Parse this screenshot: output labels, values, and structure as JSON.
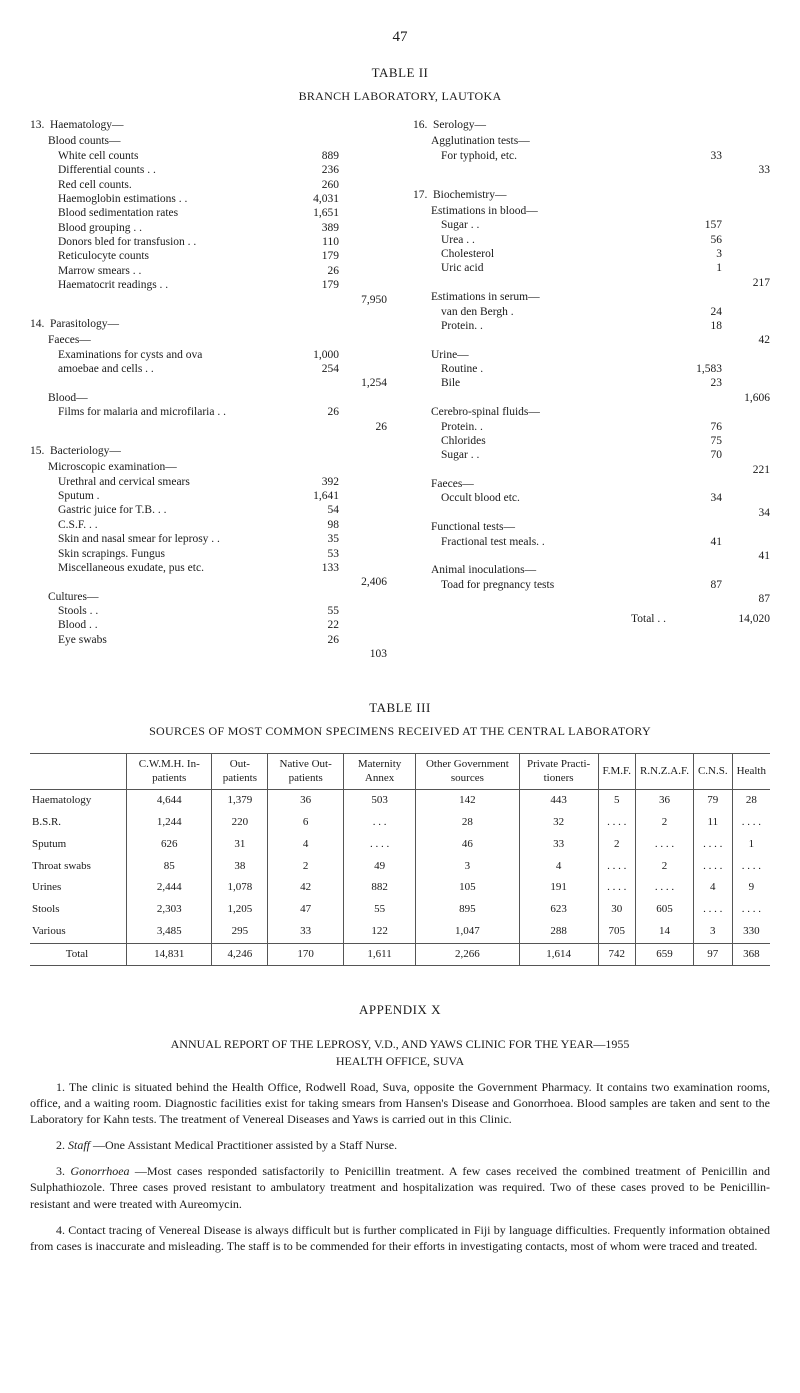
{
  "page_number": "47",
  "table2": {
    "title": "TABLE II",
    "subtitle": "BRANCH LABORATORY, LAUTOKA",
    "left": {
      "g13": {
        "num": "13.",
        "title": "Haematology—",
        "sub1": "Blood counts—",
        "items": [
          {
            "l": "White cell counts",
            "v": "889"
          },
          {
            "l": "Differential counts  . .",
            "v": "236"
          },
          {
            "l": "Red cell counts.",
            "v": "260"
          },
          {
            "l": "Haemoglobin estimations  . .",
            "v": "4,031"
          },
          {
            "l": "Blood sedimentation rates",
            "v": "1,651"
          },
          {
            "l": "Blood grouping  . .",
            "v": "389"
          },
          {
            "l": "Donors bled for transfusion  . .",
            "v": "110"
          },
          {
            "l": "Reticulocyte counts",
            "v": "179"
          },
          {
            "l": "Marrow smears  . .",
            "v": "26"
          },
          {
            "l": "Haematocrit readings  . .",
            "v": "179"
          }
        ],
        "subtotal": "7,950"
      },
      "g14": {
        "num": "14.",
        "title": "Parasitology—",
        "sub1": "Faeces—",
        "items": [
          {
            "l": "Examinations for cysts and ova",
            "v": "1,000"
          },
          {
            "l": "amoebae and cells  . .",
            "v": "254"
          }
        ],
        "sub1_total": "1,254",
        "sub2": "Blood—",
        "items2": [
          {
            "l": "Films for malaria and microfilaria  . .",
            "v": "26"
          }
        ],
        "sub2_total": "26"
      },
      "g15": {
        "num": "15.",
        "title": "Bacteriology—",
        "sub1": "Microscopic examination—",
        "items": [
          {
            "l": "Urethral and cervical smears",
            "v": "392"
          },
          {
            "l": "Sputum .",
            "v": "1,641"
          },
          {
            "l": "Gastric juice for T.B.  . .",
            "v": "54"
          },
          {
            "l": "C.S.F.  . .",
            "v": "98"
          },
          {
            "l": "Skin and nasal smear for leprosy  . .",
            "v": "35"
          },
          {
            "l": "Skin scrapings.  Fungus",
            "v": "53"
          },
          {
            "l": "Miscellaneous exudate, pus etc.",
            "v": "133"
          }
        ],
        "sub1_total": "2,406",
        "sub2": "Cultures—",
        "items2": [
          {
            "l": "Stools  . .",
            "v": "55"
          },
          {
            "l": "Blood  . .",
            "v": "22"
          },
          {
            "l": "Eye swabs",
            "v": "26"
          }
        ],
        "sub2_total": "103"
      }
    },
    "right": {
      "g16": {
        "num": "16.",
        "title": "Serology—",
        "sub1": "Agglutination tests—",
        "items": [
          {
            "l": "For typhoid, etc.",
            "v": "33"
          }
        ],
        "subtotal": "33"
      },
      "g17": {
        "num": "17.",
        "title": "Biochemistry—",
        "sub1": "Estimations in blood—",
        "items": [
          {
            "l": "Sugar  . .",
            "v": "157"
          },
          {
            "l": "Urea  . .",
            "v": "56"
          },
          {
            "l": "Cholesterol",
            "v": "3"
          },
          {
            "l": "Uric acid",
            "v": "1"
          }
        ],
        "sub1_total": "217",
        "sub2": "Estimations in serum—",
        "items2": [
          {
            "l": "van den Bergh .",
            "v": "24"
          },
          {
            "l": "Protein. .",
            "v": "18"
          }
        ],
        "sub2_total": "42",
        "sub3": "Urine—",
        "items3": [
          {
            "l": "Routine .",
            "v": "1,583"
          },
          {
            "l": "Bile",
            "v": "23"
          }
        ],
        "sub3_total": "1,606",
        "sub4": "Cerebro-spinal fluids—",
        "items4": [
          {
            "l": "Protein. .",
            "v": "76"
          },
          {
            "l": "Chlorides",
            "v": "75"
          },
          {
            "l": "Sugar  . .",
            "v": "70"
          }
        ],
        "sub4_total": "221",
        "sub5": "Faeces—",
        "items5": [
          {
            "l": "Occult blood etc.",
            "v": "34"
          }
        ],
        "sub5_total": "34",
        "sub6": "Functional tests—",
        "items6": [
          {
            "l": "Fractional test meals. .",
            "v": "41"
          }
        ],
        "sub6_total": "41",
        "sub7": "Animal inoculations—",
        "items7": [
          {
            "l": "Toad for pregnancy tests",
            "v": "87"
          }
        ],
        "sub7_total": "87",
        "total_label": "Total  . .",
        "grand_total": "14,020"
      }
    }
  },
  "table3": {
    "title": "TABLE III",
    "caption": "SOURCES OF MOST COMMON SPECIMENS RECEIVED AT THE CENTRAL LABORATORY",
    "columns": [
      "",
      "C.W.M.H. In-patients",
      "Out-patients",
      "Native Out-patients",
      "Maternity Annex",
      "Other Government sources",
      "Private Practi-tioners",
      "F.M.F.",
      "R.N.Z.A.F.",
      "C.N.S.",
      "Health"
    ],
    "rows": [
      {
        "l": "Haematology",
        "c": [
          "4,644",
          "1,379",
          "36",
          "503",
          "142",
          "443",
          "5",
          "36",
          "79",
          "28"
        ]
      },
      {
        "l": "B.S.R.",
        "c": [
          "1,244",
          "220",
          "6",
          ". . .",
          "28",
          "32",
          ". . . .",
          "2",
          "11",
          ". . . ."
        ]
      },
      {
        "l": "Sputum",
        "c": [
          "626",
          "31",
          "4",
          ". . . .",
          "46",
          "33",
          "2",
          ". . . .",
          ". . . .",
          "1"
        ]
      },
      {
        "l": "Throat swabs",
        "c": [
          "85",
          "38",
          "2",
          "49",
          "3",
          "4",
          ". . . .",
          "2",
          ". . . .",
          ". . . ."
        ]
      },
      {
        "l": "Urines",
        "c": [
          "2,444",
          "1,078",
          "42",
          "882",
          "105",
          "191",
          ". . . .",
          ". . . .",
          "4",
          "9"
        ]
      },
      {
        "l": "Stools",
        "c": [
          "2,303",
          "1,205",
          "47",
          "55",
          "895",
          "623",
          "30",
          "605",
          ". . . .",
          ". . . ."
        ]
      },
      {
        "l": "Various",
        "c": [
          "3,485",
          "295",
          "33",
          "122",
          "1,047",
          "288",
          "705",
          "14",
          "3",
          "330"
        ]
      }
    ],
    "total": {
      "l": "Total",
      "c": [
        "14,831",
        "4,246",
        "170",
        "1,611",
        "2,266",
        "1,614",
        "742",
        "659",
        "97",
        "368"
      ]
    }
  },
  "appendix": {
    "title": "APPENDIX X",
    "heading1": "ANNUAL REPORT OF THE LEPROSY, V.D., AND YAWS CLINIC FOR THE YEAR—1955",
    "heading2": "HEALTH OFFICE, SUVA",
    "p1": "1. The clinic is situated behind the Health Office, Rodwell Road, Suva, opposite the Government Pharmacy. It contains two examination rooms, office, and a waiting room. Diagnostic facilities exist for taking smears from Hansen's Disease and Gonorrhoea. Blood samples are taken and sent to the Laboratory for Kahn tests. The treatment of Venereal Diseases and Yaws is carried out in this Clinic.",
    "p2_lead": "Staff",
    "p2": "2. —One Assistant Medical Practitioner assisted by a Staff Nurse.",
    "p3_lead": "Gonorrhoea",
    "p3": "3. —Most cases responded satisfactorily to Penicillin treatment. A few cases received the combined treatment of Penicillin and Sulphathiozole. Three cases proved resistant to ambulatory treatment and hospitalization was required. Two of these cases proved to be Penicillin-resistant and were treated with Aureomycin.",
    "p4": "4. Contact tracing of Venereal Disease is always difficult but is further complicated in Fiji by language difficulties. Frequently information obtained from cases is inaccurate and misleading. The staff is to be commended for their efforts in investigating contacts, most of whom were traced and treated."
  }
}
